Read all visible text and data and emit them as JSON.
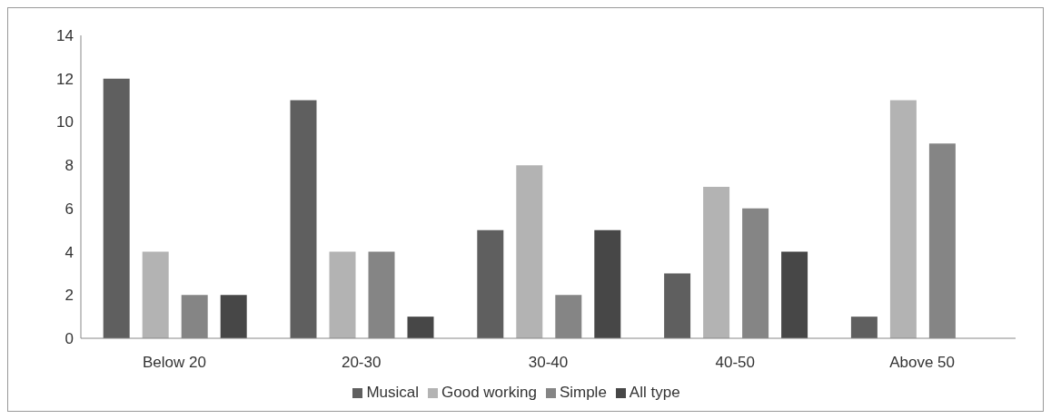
{
  "chart_data": {
    "type": "bar",
    "categories": [
      "Below 20",
      "20-30",
      "30-40",
      "40-50",
      "Above 50"
    ],
    "series": [
      {
        "name": "Musical",
        "color": "#5f5f5f",
        "values": [
          12,
          11,
          5,
          3,
          1
        ]
      },
      {
        "name": "Good working",
        "color": "#b3b3b3",
        "values": [
          4,
          4,
          8,
          7,
          11
        ]
      },
      {
        "name": "Simple",
        "color": "#858585",
        "values": [
          2,
          4,
          2,
          6,
          9
        ]
      },
      {
        "name": "All type",
        "color": "#474747",
        "values": [
          2,
          1,
          5,
          4,
          0
        ]
      }
    ],
    "ylim": [
      0,
      14
    ],
    "yticks": [
      0,
      2,
      4,
      6,
      8,
      10,
      12,
      14
    ],
    "grid": false,
    "legend": "bottom"
  }
}
